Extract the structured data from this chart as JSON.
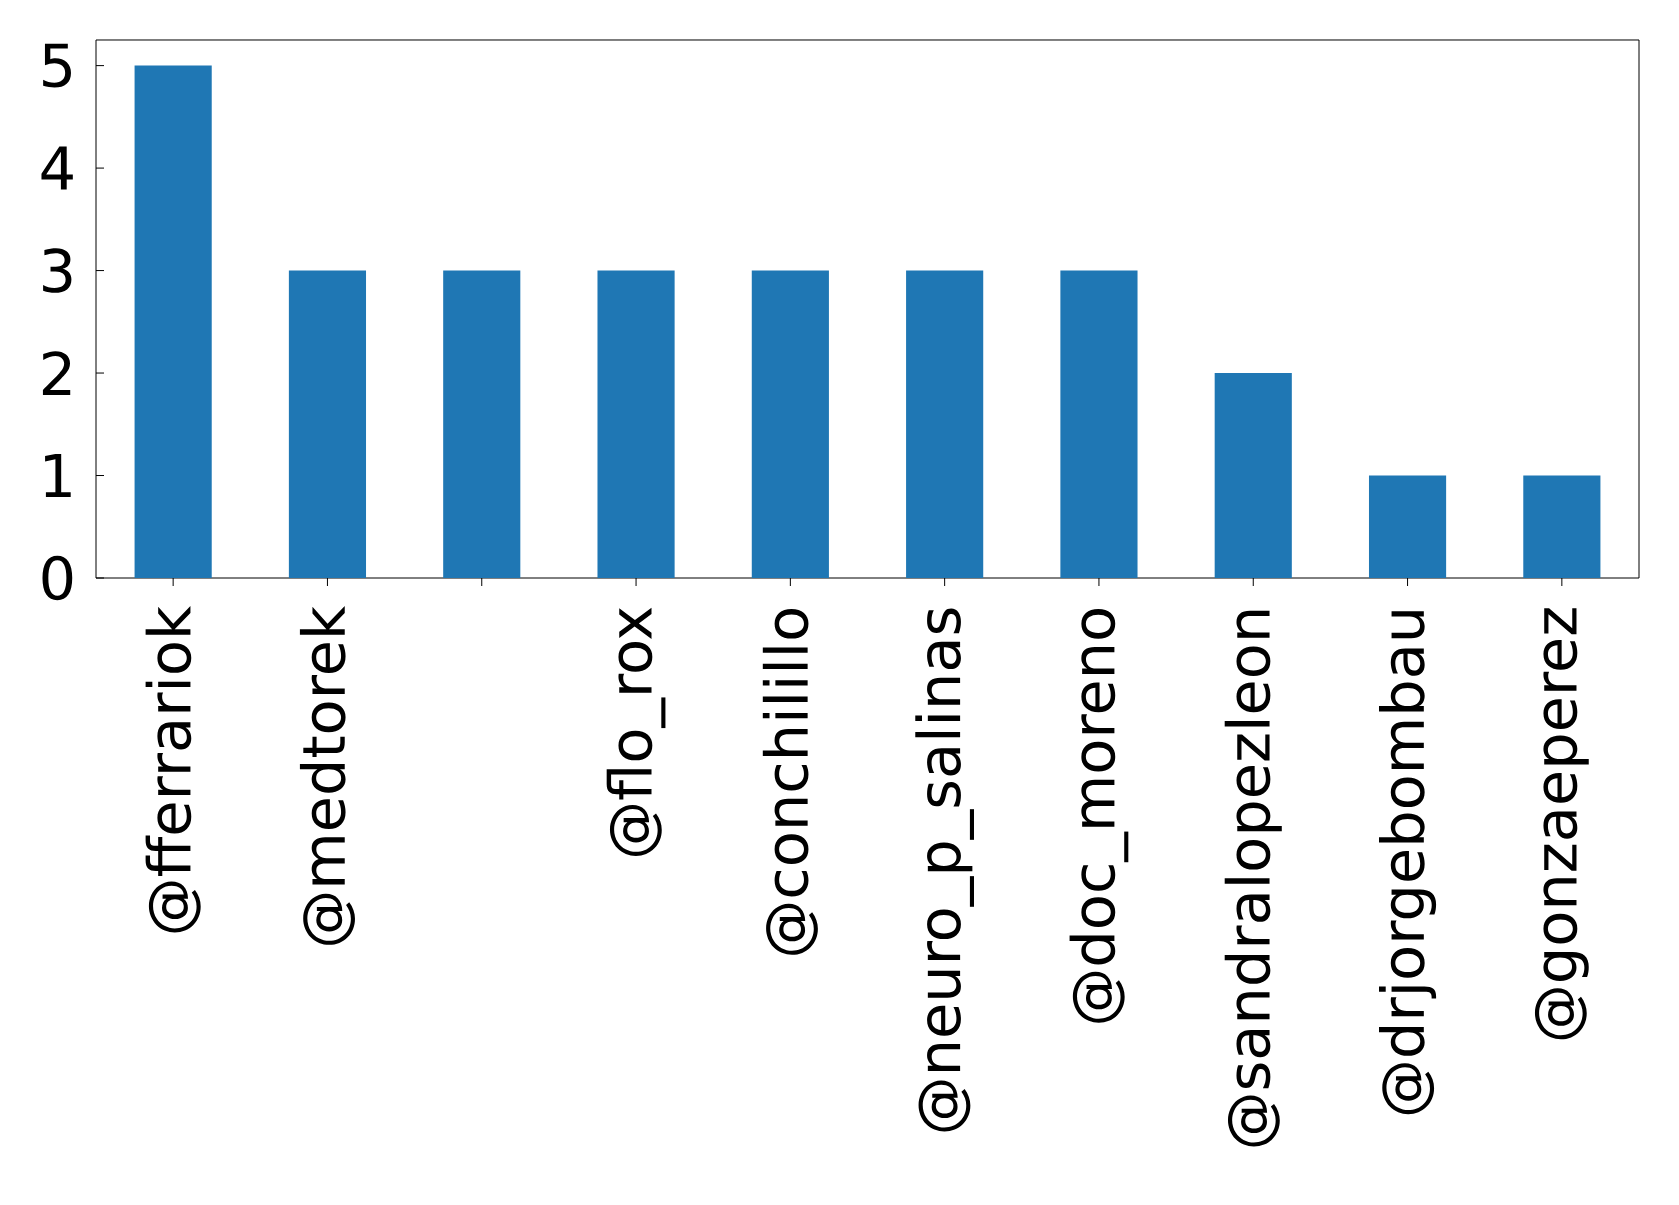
{
  "chart_data": {
    "type": "bar",
    "categories": [
      "@fferrariok",
      "@medtorek",
      null,
      "@flo_rox",
      "@conchilillo",
      "@neuro_p_salinas",
      "@doc_moreno",
      "@sandralopezleon",
      "@drjorgebombau",
      "@gonzaeperez"
    ],
    "values": [
      5,
      3,
      3,
      3,
      3,
      3,
      3,
      2,
      1,
      1
    ],
    "color": "#1f77b4",
    "ylim": [
      0,
      5.25
    ],
    "yticks": [
      0,
      1,
      2,
      3,
      4,
      5
    ]
  }
}
